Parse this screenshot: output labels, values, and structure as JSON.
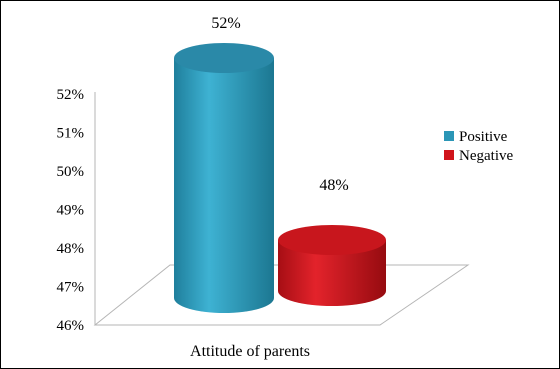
{
  "chart_data": {
    "type": "bar",
    "style": "3d-cylinder",
    "categories": [
      "Attitude of parents"
    ],
    "series": [
      {
        "name": "Positive",
        "values": [
          52
        ],
        "color": "#2b96b6"
      },
      {
        "name": "Negative",
        "values": [
          48
        ],
        "color": "#d0141b"
      }
    ],
    "data_labels": [
      "52%",
      "48%"
    ],
    "yticks": [
      "46%",
      "47%",
      "48%",
      "49%",
      "50%",
      "51%",
      "52%"
    ],
    "ylim": [
      46,
      52
    ],
    "xlabel": "Attitude of parents",
    "legend_position": "right",
    "grid": false
  }
}
